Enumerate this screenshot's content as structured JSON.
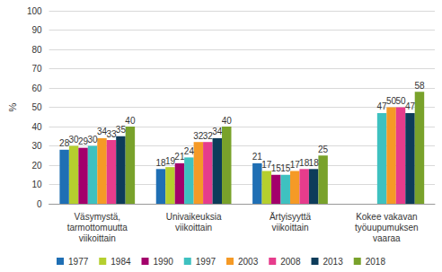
{
  "chart_data": {
    "type": "bar",
    "y_label": "%",
    "categories": [
      "Väsymystä,\ntarmottomuutta\nviikoittain",
      "Univaikeuksia\nviikoittain",
      "Ärtyisyyttä\nviikoittain",
      "Kokee vakavan\ntyöuupumuksen\nvaaraa"
    ],
    "series": [
      {
        "name": "1977",
        "color": "#1f6fb4",
        "values": [
          28,
          18,
          21,
          null
        ]
      },
      {
        "name": "1984",
        "color": "#b5cf2e",
        "values": [
          30,
          19,
          17,
          null
        ]
      },
      {
        "name": "1990",
        "color": "#a3006b",
        "values": [
          29,
          21,
          15,
          null
        ]
      },
      {
        "name": "1997",
        "color": "#3ec1c0",
        "values": [
          30,
          24,
          15,
          47
        ]
      },
      {
        "name": "2003",
        "color": "#f59a26",
        "values": [
          34,
          32,
          17,
          50
        ]
      },
      {
        "name": "2008",
        "color": "#e63c8c",
        "values": [
          33,
          32,
          18,
          50
        ]
      },
      {
        "name": "2013",
        "color": "#0d3c5a",
        "values": [
          35,
          34,
          18,
          47
        ]
      },
      {
        "name": "2018",
        "color": "#79a22b",
        "values": [
          40,
          40,
          25,
          58
        ]
      }
    ],
    "ylim": [
      0,
      100
    ],
    "yticks": [
      0,
      10,
      20,
      30,
      40,
      50,
      60,
      70,
      80,
      90,
      100
    ],
    "grid": true,
    "legend": "bottom",
    "data_labels": true
  }
}
